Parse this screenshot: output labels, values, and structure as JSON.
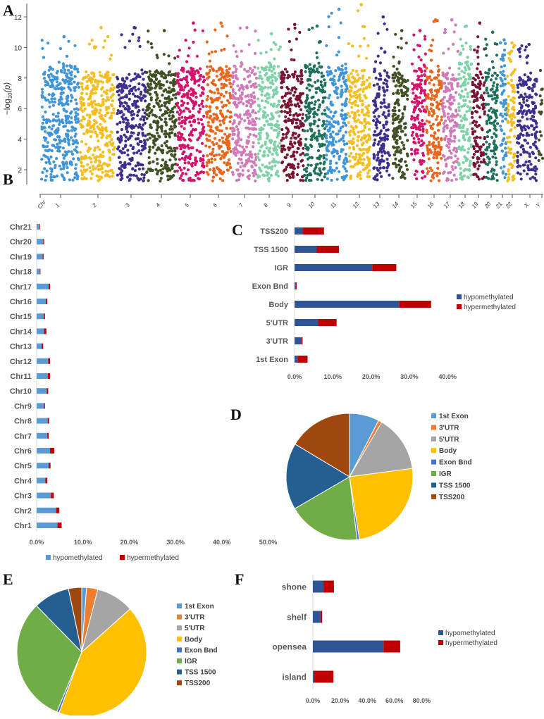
{
  "panels": {
    "A": "A",
    "B": "B",
    "C": "C",
    "D": "D",
    "E": "E",
    "F": "F"
  },
  "chart_data": [
    {
      "id": "A",
      "type": "scatter",
      "subtype": "manhattan",
      "ylabel": "−log10(p)",
      "ylabel_parts": {
        "pre": "−log",
        "sub": "10",
        "post": "(p)"
      },
      "x_axis_first_label": "Chr",
      "yticks": [
        2,
        4,
        6,
        8,
        10,
        12
      ],
      "ylim": [
        1.2,
        13
      ],
      "grid": false,
      "chromosomes": [
        {
          "label": "1",
          "color": "#3f95d8",
          "max": 10.7
        },
        {
          "label": "2",
          "color": "#f5be1f",
          "max": 11.3
        },
        {
          "label": "3",
          "color": "#3e2f8f",
          "max": 11.3
        },
        {
          "label": "4",
          "color": "#414f24",
          "max": 11.1
        },
        {
          "label": "5",
          "color": "#d4126b",
          "max": 11.6
        },
        {
          "label": "6",
          "color": "#e8661b",
          "max": 11.6
        },
        {
          "label": "7",
          "color": "#d17ab8",
          "max": 11.3
        },
        {
          "label": "8",
          "color": "#7fd2a8",
          "max": 10.9
        },
        {
          "label": "9",
          "color": "#7a1531",
          "max": 11.5
        },
        {
          "label": "10",
          "color": "#1e7158",
          "max": 11.4
        },
        {
          "label": "11",
          "color": "#3f95d8",
          "max": 12.5
        },
        {
          "label": "12",
          "color": "#f5be1f",
          "max": 12.8
        },
        {
          "label": "13",
          "color": "#3e2f8f",
          "max": 12.0
        },
        {
          "label": "14",
          "color": "#414f24",
          "max": 11.1
        },
        {
          "label": "15",
          "color": "#d4126b",
          "max": 11.1
        },
        {
          "label": "16",
          "color": "#e8661b",
          "max": 11.8
        },
        {
          "label": "17",
          "color": "#d17ab8",
          "max": 11.8
        },
        {
          "label": "18",
          "color": "#7fd2a8",
          "max": 11.4
        },
        {
          "label": "19",
          "color": "#7a1531",
          "max": 11.6
        },
        {
          "label": "20",
          "color": "#1e7158",
          "max": 11.0
        },
        {
          "label": "21",
          "color": "#3f95d8",
          "max": 10.5
        },
        {
          "label": "22",
          "color": "#f5be1f",
          "max": 10.3
        },
        {
          "label": "X",
          "color": "#3e2f8f",
          "max": 10.2
        },
        {
          "label": "Y",
          "color": "#414f24",
          "max": 8.5
        }
      ]
    },
    {
      "id": "B",
      "type": "bar",
      "orientation": "horizontal",
      "stacked": true,
      "categories": [
        "Chr21",
        "Chr20",
        "Chr19",
        "Chr18",
        "Chr17",
        "Chr16",
        "Chr15",
        "Chr14",
        "Chr13",
        "Chr12",
        "Chr11",
        "Chr10",
        "Chr9",
        "Chr8",
        "Chr7",
        "Chr6",
        "Chr5",
        "Chr4",
        "Chr3",
        "Chr2",
        "Chr1"
      ],
      "series": [
        {
          "name": "hypomethylated",
          "color": "#5b9bd5",
          "values": [
            0.6,
            1.4,
            1.3,
            0.7,
            2.6,
            2.0,
            1.5,
            1.6,
            1.1,
            2.5,
            2.4,
            2.2,
            1.6,
            2.4,
            2.3,
            2.9,
            2.6,
            1.9,
            3.1,
            4.2,
            4.5
          ]
        },
        {
          "name": "hypermethylated",
          "color": "#c00000",
          "values": [
            0.1,
            0.2,
            0.2,
            0.1,
            0.3,
            0.3,
            0.3,
            0.5,
            0.3,
            0.4,
            0.5,
            0.3,
            0.2,
            0.3,
            0.3,
            0.9,
            0.4,
            0.4,
            0.6,
            0.7,
            0.9
          ]
        }
      ],
      "xticks": [
        "0.0%",
        "10.0%",
        "20.0%",
        "30.0%",
        "40.0%",
        "50.0%"
      ],
      "xlim": [
        0,
        50
      ],
      "legend": "bottom"
    },
    {
      "id": "C",
      "type": "bar",
      "orientation": "horizontal",
      "stacked": true,
      "categories": [
        "TSS200",
        "TSS 1500",
        "IGR",
        "Exon Bnd",
        "Body",
        "5'UTR",
        "3'UTR",
        "1st Exon"
      ],
      "series": [
        {
          "name": "hypomethylated",
          "color": "#2f5597",
          "values": [
            2.1,
            5.8,
            20.3,
            0.4,
            27.3,
            6.1,
            1.8,
            0.8
          ]
        },
        {
          "name": "hypermethylated",
          "color": "#c00000",
          "values": [
            5.6,
            5.8,
            6.3,
            0.2,
            8.4,
            4.9,
            0.3,
            2.6
          ]
        }
      ],
      "xticks": [
        "0.0%",
        "10.0%",
        "20.0%",
        "30.0%",
        "40.0%"
      ],
      "xlim": [
        0,
        40
      ],
      "legend": "right"
    },
    {
      "id": "D",
      "type": "pie",
      "labels": [
        "1st Exon",
        "3'UTR",
        "5'UTR",
        "Body",
        "Exon Bnd",
        "IGR",
        "TSS 1500",
        "TSS200"
      ],
      "colors": [
        "#5b9bd5",
        "#ed7d31",
        "#a5a5a5",
        "#ffc000",
        "#4472c4",
        "#70ad47",
        "#255e91",
        "#9e480e"
      ],
      "values": [
        7.6,
        0.9,
        14.4,
        24.6,
        0.6,
        18.5,
        17.0,
        16.4
      ],
      "legend": "right"
    },
    {
      "id": "E",
      "type": "pie",
      "labels": [
        "1st Exon",
        "3'UTR",
        "5'UTR",
        "Body",
        "Exon Bnd",
        "IGR",
        "TSS 1500",
        "TSS200"
      ],
      "colors": [
        "#5b9bd5",
        "#ed7d31",
        "#a5a5a5",
        "#ffc000",
        "#4472c4",
        "#70ad47",
        "#255e91",
        "#9e480e"
      ],
      "values": [
        1.2,
        2.8,
        9.4,
        42.3,
        0.6,
        31.4,
        9.0,
        3.3
      ],
      "legend": "right"
    },
    {
      "id": "F",
      "type": "bar",
      "orientation": "horizontal",
      "stacked": true,
      "categories": [
        "shone",
        "shelf",
        "opensea",
        "island"
      ],
      "series": [
        {
          "name": "hypomethylated",
          "color": "#2f5597",
          "values": [
            7.7,
            5.6,
            52.0,
            1.0
          ]
        },
        {
          "name": "hypermethylated",
          "color": "#c00000",
          "values": [
            7.8,
            1.2,
            12.2,
            14.1
          ]
        }
      ],
      "xticks": [
        "0.0%",
        "20.0%",
        "40.0%",
        "60.0%",
        "80.0%"
      ],
      "xlim": [
        0,
        80
      ],
      "legend": "right"
    }
  ]
}
